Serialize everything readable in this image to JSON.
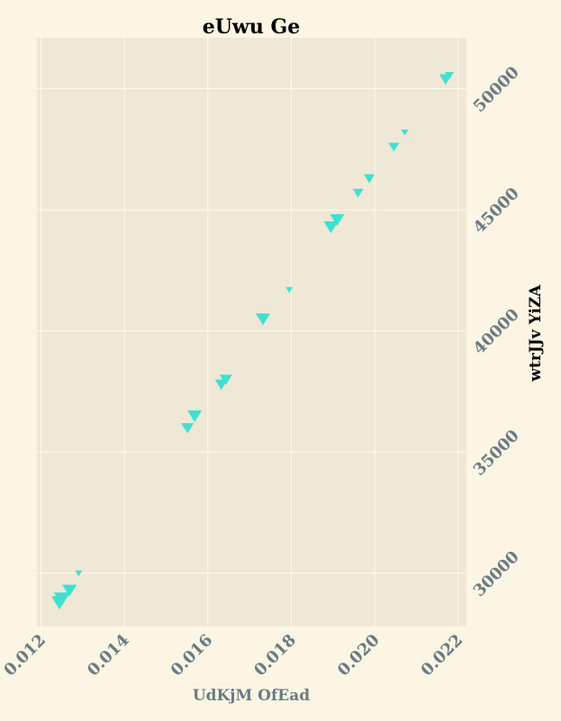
{
  "chart_data": {
    "type": "scatter",
    "title": "eUwu Ge",
    "xlabel": "UdKjM OfEad",
    "ylabel": "wtrJJv YiZA",
    "xlim": [
      0.0119,
      0.0222
    ],
    "ylim": [
      27800,
      52100
    ],
    "xticks": [
      "0.012",
      "0.014",
      "0.016",
      "0.018",
      "0.020",
      "0.022"
    ],
    "yticks": [
      "30000",
      "35000",
      "40000",
      "45000",
      "50000"
    ],
    "y_axis_side": "right",
    "grid": true,
    "marker": "triangle-down",
    "colors": {
      "marker": "#40e0d0",
      "background": "#fcf5e3",
      "plot_area": "#efe8d6",
      "grid": "#fdfaf0",
      "tick_text": "#6b7b84"
    },
    "points": [
      {
        "x": 0.01244,
        "y": 28800,
        "size": 9
      },
      {
        "x": 0.0125,
        "y": 28950,
        "size": 9
      },
      {
        "x": 0.01268,
        "y": 29300,
        "size": 8
      },
      {
        "x": 0.0129,
        "y": 30000,
        "size": 4
      },
      {
        "x": 0.01551,
        "y": 36000,
        "size": 7
      },
      {
        "x": 0.01568,
        "y": 36500,
        "size": 8
      },
      {
        "x": 0.01632,
        "y": 37800,
        "size": 7
      },
      {
        "x": 0.01643,
        "y": 38000,
        "size": 7
      },
      {
        "x": 0.01732,
        "y": 40500,
        "size": 8
      },
      {
        "x": 0.01795,
        "y": 41700,
        "size": 4
      },
      {
        "x": 0.01895,
        "y": 44300,
        "size": 8
      },
      {
        "x": 0.0191,
        "y": 44600,
        "size": 8
      },
      {
        "x": 0.0196,
        "y": 45700,
        "size": 6
      },
      {
        "x": 0.01987,
        "y": 46300,
        "size": 6
      },
      {
        "x": 0.02046,
        "y": 47600,
        "size": 6
      },
      {
        "x": 0.02072,
        "y": 48200,
        "size": 4
      },
      {
        "x": 0.0217,
        "y": 50400,
        "size": 7
      },
      {
        "x": 0.02179,
        "y": 50550,
        "size": 5
      }
    ]
  }
}
